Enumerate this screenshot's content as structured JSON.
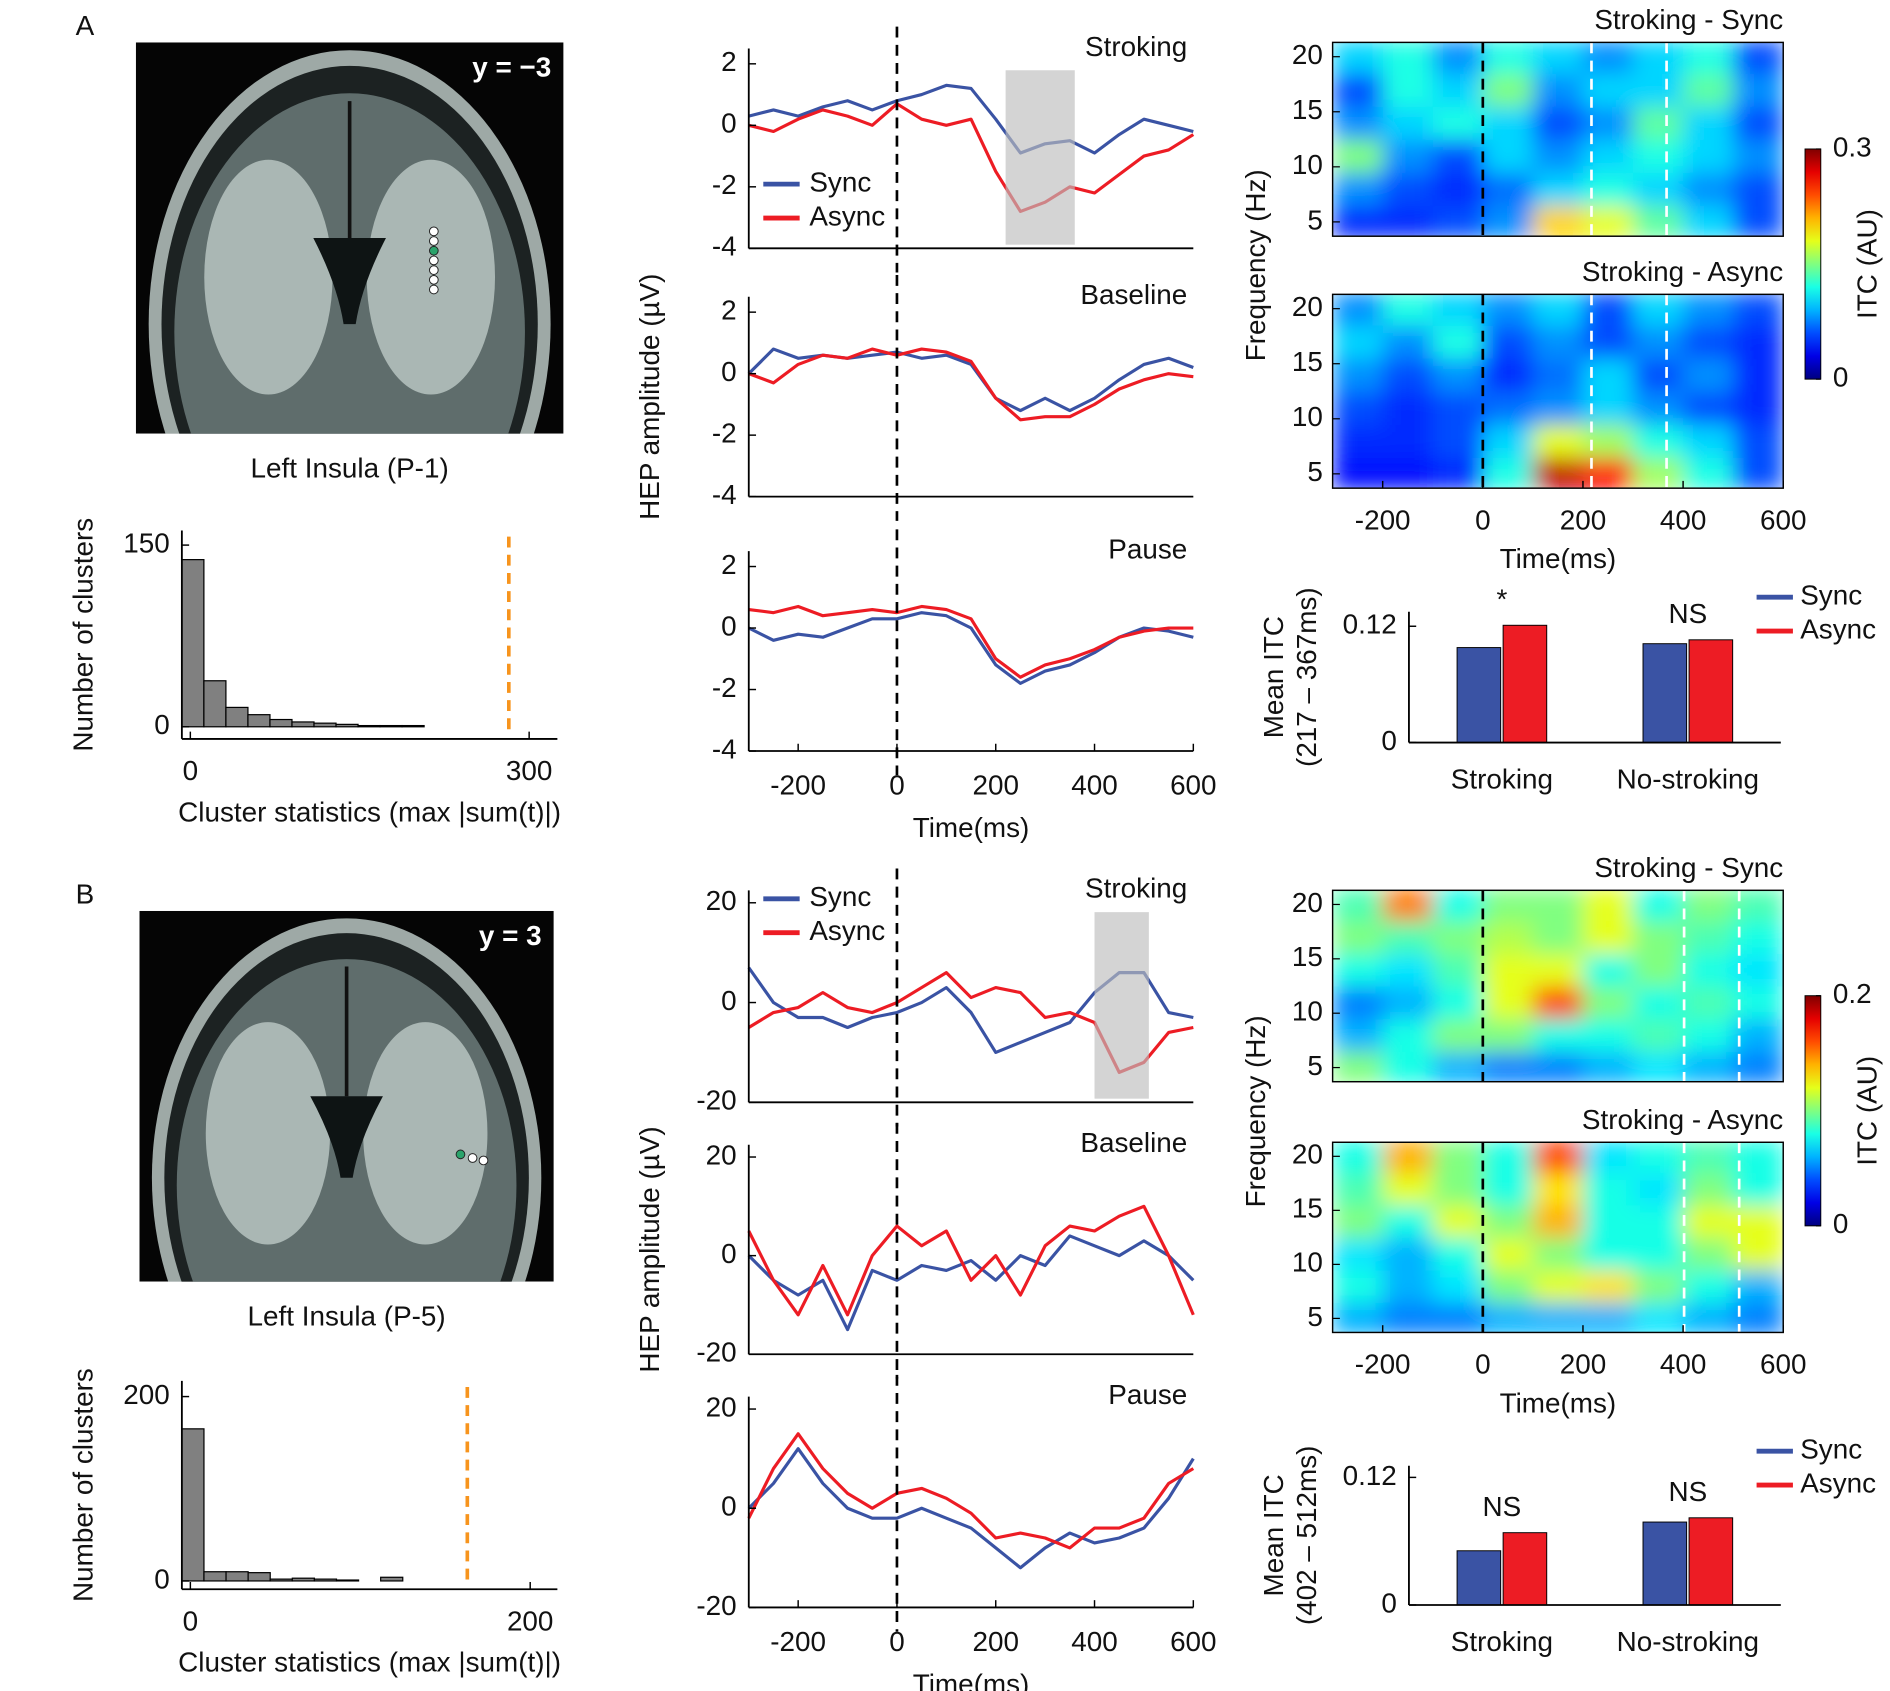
{
  "chart_data": [
    {
      "type": "image",
      "panel": "A",
      "label": "y = −3",
      "caption": "Left Insula (P-1)"
    },
    {
      "type": "histogram",
      "bins": [
        -7.5,
        12,
        31.5,
        51,
        70.5,
        90,
        109.5,
        129,
        148.5,
        168,
        187.5,
        207
      ],
      "counts": [
        138,
        38,
        16,
        10,
        6,
        4,
        3,
        2,
        1,
        1,
        1
      ],
      "color": "#808080",
      "xlim": [
        -7.5,
        325
      ],
      "ylim": [
        -10,
        162
      ],
      "xticks": [
        0,
        300
      ],
      "yticks": [
        0,
        150
      ],
      "threshold": 282,
      "threshold_color": "#f7941d",
      "xlabel": "Cluster statistics (max |sum(t)|)",
      "ylabel": "Number of clusters"
    },
    {
      "type": "line",
      "title": "Stroking",
      "x": [
        -300,
        -250,
        -200,
        -150,
        -100,
        -50,
        0,
        50,
        100,
        150,
        200,
        250,
        300,
        350,
        400,
        450,
        500,
        550,
        600
      ],
      "series": [
        {
          "name": "Sync",
          "color": "#3a53a4",
          "values": [
            0.3,
            0.5,
            0.3,
            0.6,
            0.8,
            0.5,
            0.8,
            1.0,
            1.3,
            1.2,
            0.2,
            -0.9,
            -0.6,
            -0.5,
            -0.9,
            -0.3,
            0.2,
            0.0,
            -0.2
          ]
        },
        {
          "name": "Async",
          "color": "#ed1c24",
          "values": [
            0.0,
            -0.2,
            0.2,
            0.5,
            0.3,
            0.0,
            0.7,
            0.2,
            0.0,
            0.2,
            -1.5,
            -2.8,
            -2.5,
            -2.0,
            -2.2,
            -1.6,
            -1.0,
            -0.8,
            -0.3
          ]
        }
      ],
      "legend": "lower left",
      "xlim": [
        -300,
        600
      ],
      "ylim": [
        -4,
        2.5
      ],
      "yticks": [
        -4,
        -2,
        0,
        2
      ],
      "vline": 0,
      "highlight": [
        220,
        360
      ]
    },
    {
      "type": "line",
      "title": "Baseline",
      "x": [
        -300,
        -250,
        -200,
        -150,
        -100,
        -50,
        0,
        50,
        100,
        150,
        200,
        250,
        300,
        350,
        400,
        450,
        500,
        550,
        600
      ],
      "series": [
        {
          "color": "#3a53a4",
          "values": [
            0.0,
            0.8,
            0.5,
            0.6,
            0.5,
            0.6,
            0.7,
            0.5,
            0.6,
            0.3,
            -0.8,
            -1.2,
            -0.8,
            -1.2,
            -0.8,
            -0.2,
            0.3,
            0.5,
            0.2
          ]
        },
        {
          "color": "#ed1c24",
          "values": [
            0.0,
            -0.3,
            0.3,
            0.6,
            0.5,
            0.8,
            0.6,
            0.8,
            0.7,
            0.4,
            -0.8,
            -1.5,
            -1.4,
            -1.4,
            -1.0,
            -0.5,
            -0.2,
            0.0,
            -0.1
          ]
        }
      ],
      "xlim": [
        -300,
        600
      ],
      "ylim": [
        -4,
        2.5
      ],
      "yticks": [
        -4,
        -2,
        0,
        2
      ],
      "vline": 0,
      "ylabel": "HEP amplitude (µV)"
    },
    {
      "type": "line",
      "title": "Pause",
      "x": [
        -300,
        -250,
        -200,
        -150,
        -100,
        -50,
        0,
        50,
        100,
        150,
        200,
        250,
        300,
        350,
        400,
        450,
        500,
        550,
        600
      ],
      "series": [
        {
          "color": "#3a53a4",
          "values": [
            0.0,
            -0.4,
            -0.2,
            -0.3,
            0.0,
            0.3,
            0.3,
            0.5,
            0.4,
            0.0,
            -1.2,
            -1.8,
            -1.4,
            -1.2,
            -0.8,
            -0.3,
            0.0,
            -0.1,
            -0.3
          ]
        },
        {
          "color": "#ed1c24",
          "values": [
            0.6,
            0.5,
            0.7,
            0.4,
            0.5,
            0.6,
            0.5,
            0.7,
            0.6,
            0.3,
            -1.0,
            -1.6,
            -1.2,
            -1.0,
            -0.7,
            -0.3,
            -0.1,
            0.0,
            0.0
          ]
        }
      ],
      "xlim": [
        -300,
        600
      ],
      "ylim": [
        -4,
        2.5
      ],
      "yticks": [
        -4,
        -2,
        0,
        2
      ],
      "xticks": [
        -200,
        0,
        200,
        400,
        600
      ],
      "xlabel": "Time(ms)",
      "vline": 0
    },
    {
      "type": "heatmap",
      "title": "Stroking - Sync",
      "x": [
        -250,
        -150,
        -50,
        50,
        150,
        250,
        350,
        450,
        550
      ],
      "y": [
        5,
        8,
        11,
        14,
        17,
        20
      ],
      "z": [
        [
          0.05,
          0.05,
          0.06,
          0.08,
          0.2,
          0.18,
          0.14,
          0.1,
          0.06
        ],
        [
          0.08,
          0.06,
          0.05,
          0.07,
          0.1,
          0.12,
          0.1,
          0.08,
          0.06
        ],
        [
          0.15,
          0.08,
          0.06,
          0.1,
          0.08,
          0.1,
          0.12,
          0.1,
          0.08
        ],
        [
          0.08,
          0.1,
          0.12,
          0.1,
          0.06,
          0.08,
          0.14,
          0.1,
          0.06
        ],
        [
          0.06,
          0.12,
          0.1,
          0.15,
          0.08,
          0.1,
          0.1,
          0.14,
          0.08
        ],
        [
          0.1,
          0.12,
          0.08,
          0.12,
          0.1,
          0.08,
          0.1,
          0.12,
          0.06
        ]
      ],
      "clim": [
        0,
        0.3
      ],
      "xlim": [
        -300,
        600
      ],
      "ylim": [
        3.7,
        21.3
      ],
      "yticks": [
        5,
        10,
        15,
        20
      ],
      "vlines": [
        0,
        217,
        367
      ],
      "vline_colors": [
        "#000000",
        "#ffffff",
        "#ffffff"
      ],
      "ylabel": "Frequency (Hz)"
    },
    {
      "type": "heatmap",
      "title": "Stroking - Async",
      "x": [
        -250,
        -150,
        -50,
        50,
        150,
        250,
        350,
        450,
        550
      ],
      "y": [
        5,
        8,
        11,
        14,
        17,
        20
      ],
      "z": [
        [
          0.04,
          0.04,
          0.05,
          0.12,
          0.28,
          0.26,
          0.16,
          0.12,
          0.06
        ],
        [
          0.05,
          0.05,
          0.06,
          0.1,
          0.18,
          0.16,
          0.12,
          0.1,
          0.06
        ],
        [
          0.06,
          0.05,
          0.06,
          0.07,
          0.08,
          0.1,
          0.08,
          0.06,
          0.05
        ],
        [
          0.08,
          0.06,
          0.08,
          0.05,
          0.07,
          0.1,
          0.06,
          0.08,
          0.05
        ],
        [
          0.1,
          0.08,
          0.12,
          0.06,
          0.08,
          0.06,
          0.08,
          0.06,
          0.05
        ],
        [
          0.08,
          0.12,
          0.1,
          0.08,
          0.1,
          0.06,
          0.1,
          0.08,
          0.06
        ]
      ],
      "clim": [
        0,
        0.3
      ],
      "xlim": [
        -300,
        600
      ],
      "ylim": [
        3.7,
        21.3
      ],
      "yticks": [
        5,
        10,
        15,
        20
      ],
      "xticks": [
        -200,
        0,
        200,
        400,
        600
      ],
      "xlabel": "Time(ms)",
      "vlines": [
        0,
        217,
        367
      ],
      "vline_colors": [
        "#000000",
        "#ffffff",
        "#ffffff"
      ]
    },
    {
      "type": "colorbar",
      "clim": [
        0,
        0.3
      ],
      "ticks": [
        0,
        0.3
      ],
      "label": "ITC (AU)"
    },
    {
      "type": "bar",
      "categories": [
        "Stroking",
        "No-stroking"
      ],
      "series": [
        {
          "name": "Sync",
          "color": "#3a53a4",
          "values": [
            0.098,
            0.102
          ]
        },
        {
          "name": "Async",
          "color": "#ed1c24",
          "values": [
            0.121,
            0.106
          ]
        }
      ],
      "annotations": [
        "*",
        "NS"
      ],
      "ylim": [
        0,
        0.135
      ],
      "yticks": [
        0,
        0.12
      ],
      "ylabel": [
        "Mean ITC",
        "(217 – 367ms)"
      ],
      "legend": "upper right"
    },
    {
      "type": "image",
      "panel": "B",
      "label": "y = 3",
      "caption": "Left Insula (P-5)"
    },
    {
      "type": "histogram",
      "bins": [
        -5,
        8,
        21,
        34,
        47,
        60,
        73,
        86,
        99,
        112,
        125
      ],
      "counts": [
        165,
        10,
        10,
        9,
        2,
        3,
        2,
        1,
        0,
        4
      ],
      "color": "#808080",
      "xlim": [
        -5,
        216
      ],
      "ylim": [
        -9,
        217
      ],
      "xticks": [
        0,
        200
      ],
      "yticks": [
        0,
        200
      ],
      "threshold": 163,
      "threshold_color": "#f7941d",
      "xlabel": "Cluster statistics (max |sum(t)|)",
      "ylabel": "Number of clusters"
    },
    {
      "type": "line",
      "title": "Stroking",
      "x": [
        -300,
        -250,
        -200,
        -150,
        -100,
        -50,
        0,
        50,
        100,
        150,
        200,
        250,
        300,
        350,
        400,
        450,
        500,
        550,
        600
      ],
      "series": [
        {
          "name": "Sync",
          "color": "#3a53a4",
          "values": [
            7,
            0,
            -3,
            -3,
            -5,
            -3,
            -2,
            0,
            3,
            -2,
            -10,
            -8,
            -6,
            -4,
            2,
            6,
            6,
            -2,
            -3
          ]
        },
        {
          "name": "Async",
          "color": "#ed1c24",
          "values": [
            -5,
            -2,
            -1,
            2,
            -1,
            -2,
            0,
            3,
            6,
            1,
            3,
            2,
            -3,
            -2,
            -4,
            -14,
            -12,
            -6,
            -5
          ]
        }
      ],
      "legend": "upper left",
      "xlim": [
        -300,
        600
      ],
      "ylim": [
        -20,
        22.5
      ],
      "yticks": [
        -20,
        0,
        20
      ],
      "vline": 0,
      "highlight": [
        400,
        510
      ]
    },
    {
      "type": "line",
      "title": "Baseline",
      "x": [
        -300,
        -250,
        -200,
        -150,
        -100,
        -50,
        0,
        50,
        100,
        150,
        200,
        250,
        300,
        350,
        400,
        450,
        500,
        550,
        600
      ],
      "series": [
        {
          "color": "#3a53a4",
          "values": [
            0,
            -5,
            -8,
            -5,
            -15,
            -3,
            -5,
            -2,
            -3,
            -1,
            -5,
            0,
            -2,
            4,
            2,
            0,
            3,
            0,
            -5
          ]
        },
        {
          "color": "#ed1c24",
          "values": [
            5,
            -5,
            -12,
            -2,
            -12,
            0,
            6,
            2,
            5,
            -5,
            0,
            -8,
            2,
            6,
            5,
            8,
            10,
            0,
            -12
          ]
        }
      ],
      "xlim": [
        -300,
        600
      ],
      "ylim": [
        -20,
        22.5
      ],
      "yticks": [
        -20,
        0,
        20
      ],
      "vline": 0,
      "ylabel": "HEP amplitude (µV)"
    },
    {
      "type": "line",
      "title": "Pause",
      "x": [
        -300,
        -250,
        -200,
        -150,
        -100,
        -50,
        0,
        50,
        100,
        150,
        200,
        250,
        300,
        350,
        400,
        450,
        500,
        550,
        600
      ],
      "series": [
        {
          "color": "#3a53a4",
          "values": [
            0,
            5,
            12,
            5,
            0,
            -2,
            -2,
            0,
            -2,
            -4,
            -8,
            -12,
            -8,
            -5,
            -7,
            -6,
            -4,
            2,
            10
          ]
        },
        {
          "color": "#ed1c24",
          "values": [
            -2,
            8,
            15,
            8,
            3,
            0,
            3,
            4,
            2,
            -1,
            -6,
            -5,
            -6,
            -8,
            -4,
            -4,
            -2,
            5,
            8
          ]
        }
      ],
      "xlim": [
        -300,
        600
      ],
      "ylim": [
        -20,
        22.5
      ],
      "yticks": [
        -20,
        0,
        20
      ],
      "xticks": [
        -200,
        0,
        200,
        400,
        600
      ],
      "xlabel": "Time(ms)",
      "vline": 0
    },
    {
      "type": "heatmap",
      "title": "Stroking - Sync",
      "x": [
        -250,
        -150,
        -50,
        50,
        150,
        250,
        350,
        450,
        550
      ],
      "y": [
        5,
        8,
        11,
        14,
        17,
        20
      ],
      "z": [
        [
          0.1,
          0.08,
          0.06,
          0.05,
          0.05,
          0.06,
          0.07,
          0.06,
          0.05
        ],
        [
          0.06,
          0.08,
          0.1,
          0.1,
          0.08,
          0.08,
          0.09,
          0.08,
          0.06
        ],
        [
          0.05,
          0.06,
          0.08,
          0.12,
          0.16,
          0.1,
          0.08,
          0.09,
          0.08
        ],
        [
          0.08,
          0.07,
          0.09,
          0.12,
          0.12,
          0.08,
          0.1,
          0.08,
          0.07
        ],
        [
          0.1,
          0.09,
          0.1,
          0.11,
          0.1,
          0.12,
          0.1,
          0.09,
          0.08
        ],
        [
          0.09,
          0.15,
          0.08,
          0.1,
          0.1,
          0.12,
          0.08,
          0.1,
          0.09
        ]
      ],
      "clim": [
        0,
        0.2
      ],
      "xlim": [
        -300,
        600
      ],
      "ylim": [
        3.7,
        21.3
      ],
      "yticks": [
        5,
        10,
        15,
        20
      ],
      "vlines": [
        0,
        402,
        512
      ],
      "vline_colors": [
        "#000000",
        "#ffffff",
        "#ffffff"
      ],
      "ylabel": "Frequency (Hz)"
    },
    {
      "type": "heatmap",
      "title": "Stroking - Async",
      "x": [
        -250,
        -150,
        -50,
        50,
        150,
        250,
        350,
        450,
        550
      ],
      "y": [
        5,
        8,
        11,
        14,
        17,
        20
      ],
      "z": [
        [
          0.06,
          0.05,
          0.05,
          0.06,
          0.06,
          0.06,
          0.07,
          0.06,
          0.05
        ],
        [
          0.08,
          0.06,
          0.07,
          0.1,
          0.12,
          0.13,
          0.1,
          0.08,
          0.06
        ],
        [
          0.07,
          0.06,
          0.08,
          0.12,
          0.1,
          0.08,
          0.08,
          0.1,
          0.12
        ],
        [
          0.1,
          0.08,
          0.12,
          0.1,
          0.14,
          0.08,
          0.08,
          0.12,
          0.12
        ],
        [
          0.09,
          0.12,
          0.1,
          0.08,
          0.13,
          0.08,
          0.07,
          0.1,
          0.08
        ],
        [
          0.08,
          0.14,
          0.1,
          0.08,
          0.16,
          0.07,
          0.08,
          0.09,
          0.08
        ]
      ],
      "clim": [
        0,
        0.2
      ],
      "xlim": [
        -300,
        600
      ],
      "ylim": [
        3.7,
        21.3
      ],
      "yticks": [
        5,
        10,
        15,
        20
      ],
      "xticks": [
        -200,
        0,
        200,
        400,
        600
      ],
      "xlabel": "Time(ms)",
      "vlines": [
        0,
        402,
        512
      ],
      "vline_colors": [
        "#000000",
        "#ffffff",
        "#ffffff"
      ]
    },
    {
      "type": "colorbar",
      "clim": [
        0,
        0.2
      ],
      "ticks": [
        0,
        0.2
      ],
      "label": "ITC (AU)"
    },
    {
      "type": "bar",
      "categories": [
        "Stroking",
        "No-stroking"
      ],
      "series": [
        {
          "name": "Sync",
          "color": "#3a53a4",
          "values": [
            0.051,
            0.078
          ]
        },
        {
          "name": "Async",
          "color": "#ed1c24",
          "values": [
            0.068,
            0.082
          ]
        }
      ],
      "annotations": [
        "NS",
        "NS"
      ],
      "ylim": [
        0,
        0.131
      ],
      "yticks": [
        0,
        0.12
      ],
      "ylabel": [
        "Mean ITC",
        "(402 – 512ms)"
      ],
      "legend": "upper right"
    }
  ]
}
